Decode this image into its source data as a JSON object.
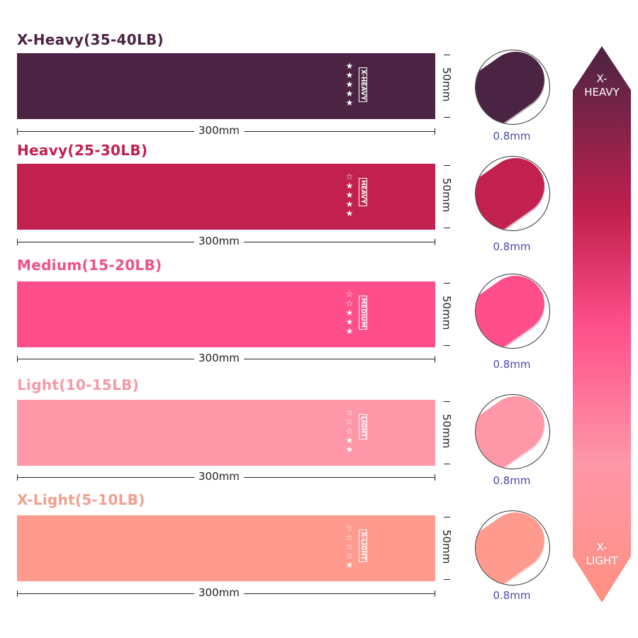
{
  "bands": [
    {
      "title": "X-Heavy(35-40LB)",
      "tag": "X-HEAVY",
      "stars_filled": 5,
      "stars_total": 5,
      "length": "300mm",
      "width": "50mm",
      "thickness": "0.8mm",
      "color": "#4a2442",
      "title_color": "#4a2442"
    },
    {
      "title": "Heavy(25-30LB)",
      "tag": "HEAVY",
      "stars_filled": 4,
      "stars_total": 5,
      "length": "300mm",
      "width": "50mm",
      "thickness": "0.8mm",
      "color": "#c2204f",
      "title_color": "#c2204f"
    },
    {
      "title": "Medium(15-20LB)",
      "tag": "MEDIUM",
      "stars_filled": 3,
      "stars_total": 5,
      "length": "300mm",
      "width": "50mm",
      "thickness": "0.8mm",
      "color": "#fe4f8a",
      "title_color": "#f0508a"
    },
    {
      "title": "Light(10-15LB)",
      "tag": "LIGHT",
      "stars_filled": 2,
      "stars_total": 5,
      "length": "300mm",
      "width": "50mm",
      "thickness": "0.8mm",
      "color": "#fe97a8",
      "title_color": "#f59aa6"
    },
    {
      "title": "X-Light(5-10LB)",
      "tag": "X-LIGHT",
      "stars_filled": 1,
      "stars_total": 5,
      "length": "300mm",
      "width": "50mm",
      "thickness": "0.8mm",
      "color": "#fe9a8e",
      "title_color": "#f2a090"
    }
  ],
  "scale": {
    "top_label": "X-\nHEAVY",
    "top_line1": "X-",
    "top_line2": "HEAVY",
    "bottom_line1": "X-",
    "bottom_line2": "LIGHT"
  }
}
